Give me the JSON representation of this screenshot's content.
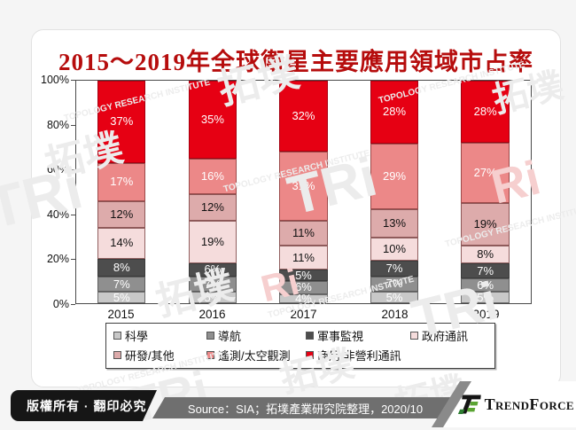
{
  "title": "2015～2019年全球衛星主要應用領域市占率",
  "chart_data": {
    "type": "bar",
    "stacked": true,
    "title": "2015～2019年全球衛星主要應用領域市占率",
    "categories": [
      "2015",
      "2016",
      "2017",
      "2018",
      "2019"
    ],
    "series": [
      {
        "name": "科學",
        "color": "#c8c8c8",
        "border": "#6e6e6e",
        "label_color": "#ffffff",
        "values": [
          5,
          5,
          4,
          5,
          5
        ]
      },
      {
        "name": "導航",
        "color": "#8f8f8f",
        "border": "#5e5e5e",
        "label_color": "#ffffff",
        "values": [
          7,
          7,
          6,
          7,
          6
        ]
      },
      {
        "name": "軍事監視",
        "color": "#4d4d4d",
        "border": "#3a3a3a",
        "label_color": "#ffffff",
        "values": [
          8,
          6,
          5,
          7,
          7
        ]
      },
      {
        "name": "政府通訊",
        "color": "#f5dcdc",
        "border": "#916060",
        "label_color": "#111111",
        "values": [
          14,
          19,
          11,
          10,
          8
        ]
      },
      {
        "name": "研發/其他",
        "color": "#ddabab",
        "border": "#8d5757",
        "label_color": "#111111",
        "values": [
          12,
          12,
          11,
          13,
          19
        ]
      },
      {
        "name": "遙測/太空觀測",
        "color": "#ec8888",
        "border": "#9c4a4a",
        "label_color": "#ffffff",
        "values": [
          17,
          16,
          31,
          29,
          27
        ]
      },
      {
        "name": "商用/非營利通訊",
        "color": "#e60013",
        "border": "#a50010",
        "label_color": "#ffffff",
        "values": [
          37,
          35,
          32,
          28,
          28
        ]
      }
    ],
    "yticks": [
      "0%",
      "20%",
      "40%",
      "60%",
      "80%",
      "100%"
    ],
    "ylim": [
      0,
      100
    ],
    "grid": false,
    "legend_position": "bottom",
    "value_label_suffix": "%"
  },
  "footer": {
    "copyright": "版權所有 · 翻印必究",
    "source": "Source：SIA；拓墣產業研究院整理，2020/10",
    "logo": {
      "big1": "T",
      "small1": "REND",
      "big2": "F",
      "small2": "ORCE"
    }
  },
  "watermark": {
    "texts": [
      "拓墣",
      "TRi",
      "TOPOLOGY RESEARCH INSTITUTE",
      "Ri"
    ],
    "gray": "#ececec",
    "pink": "#f6cfcf"
  }
}
